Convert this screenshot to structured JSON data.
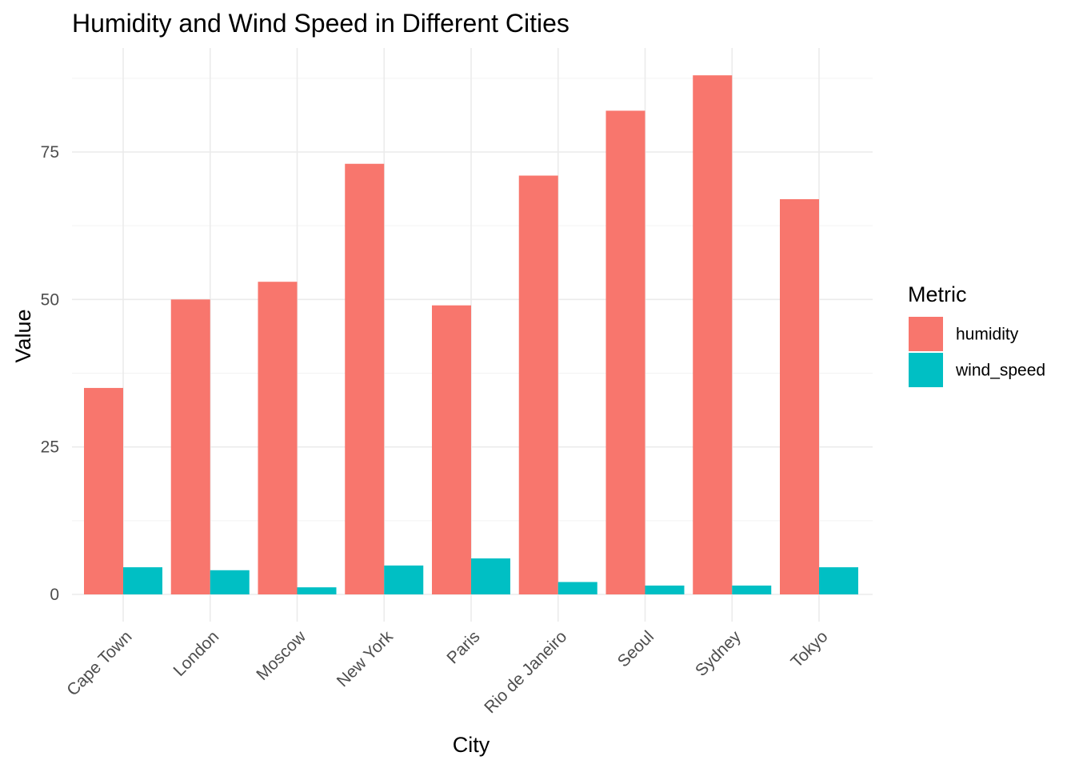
{
  "chart_data": {
    "type": "bar",
    "title": "Humidity and Wind Speed in Different Cities",
    "xlabel": "City",
    "ylabel": "Value",
    "categories": [
      "Cape Town",
      "London",
      "Moscow",
      "New York",
      "Paris",
      "Rio de Janeiro",
      "Seoul",
      "Sydney",
      "Tokyo"
    ],
    "series": [
      {
        "name": "humidity",
        "color": "#F8766D",
        "values": [
          35,
          50,
          53,
          73,
          49,
          71,
          82,
          88,
          67
        ]
      },
      {
        "name": "wind_speed",
        "color": "#00BFC4",
        "values": [
          4.6,
          4.1,
          1.2,
          4.9,
          6.1,
          2.1,
          1.5,
          1.5,
          4.6
        ]
      }
    ],
    "ylim": [
      0,
      90
    ],
    "yticks": [
      0,
      25,
      50,
      75
    ],
    "ytick_labels": [
      "0",
      "25",
      "50",
      "75"
    ],
    "grid": true,
    "legend": {
      "title": "Metric",
      "position": "right"
    }
  }
}
